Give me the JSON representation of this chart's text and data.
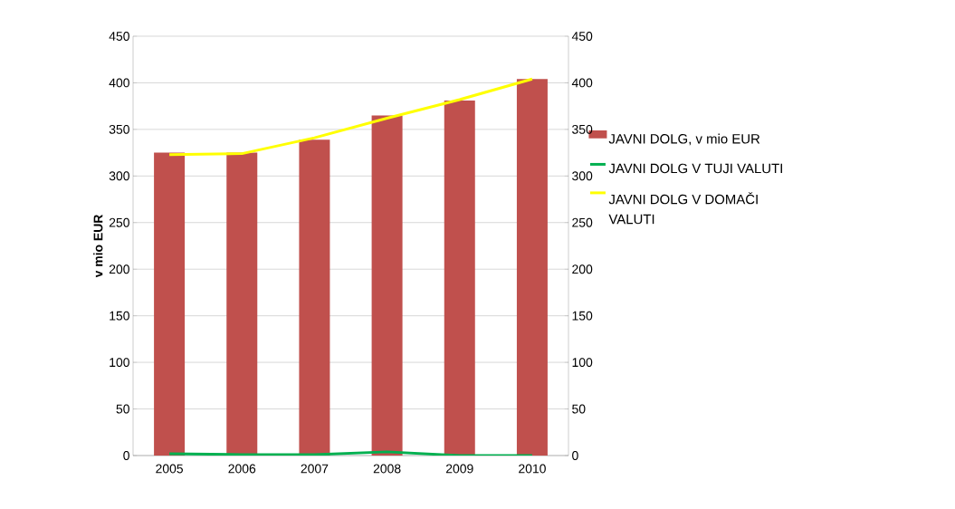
{
  "chart_data": {
    "type": "bar",
    "ylabel": "v mio EUR",
    "categories": [
      "2005",
      "2006",
      "2007",
      "2008",
      "2009",
      "2010"
    ],
    "series": [
      {
        "name": "JAVNI DOLG,  v mio EUR",
        "color": "#c0504d",
        "values": [
          325,
          325,
          339,
          365,
          381,
          404
        ]
      },
      {
        "name": "JAVNI DOLG V TUJI VALUTI",
        "type": "line",
        "color": "#00b050",
        "values": [
          2,
          1,
          1,
          4,
          0,
          0
        ]
      },
      {
        "name": "JAVNI DOLG V DOMAČI VALUTI",
        "type": "line",
        "color": "#ffff00",
        "values": [
          323,
          324,
          341,
          362,
          382,
          404
        ]
      }
    ],
    "ylim": [
      0,
      450
    ],
    "yticks": [
      0,
      50,
      100,
      150,
      200,
      250,
      300,
      350,
      400,
      450
    ],
    "y2lim": [
      0,
      450
    ],
    "y2ticks": [
      0,
      50,
      100,
      150,
      200,
      250,
      300,
      350,
      400,
      450
    ],
    "grid": "y",
    "legend": "right",
    "marker": "none",
    "line_style": "solid"
  }
}
